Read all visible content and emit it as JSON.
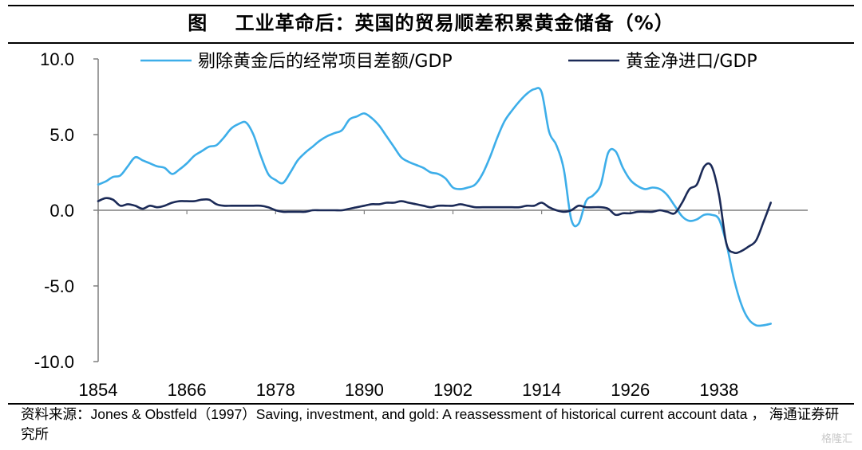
{
  "title": "图　 工业革命后：英国的贸易顺差积累黄金储备（%）",
  "source": "资料来源：Jones & Obstfeld（1997）Saving, investment, and gold: A reassessment of historical current account data ， 海通证券研究所",
  "watermark": "格隆汇",
  "colors": {
    "series1": "#3daee9",
    "series2": "#1b2a57",
    "axis": "#7f7f7f"
  },
  "chart_data": {
    "type": "line",
    "title": "工业革命后：英国的贸易顺差积累黄金储备（%）",
    "xlabel": "",
    "ylabel": "",
    "xlim": [
      1854,
      1950
    ],
    "ylim": [
      -10,
      10
    ],
    "y_ticks": [
      "10.0",
      "5.0",
      "0.0",
      "-5.0",
      "-10.0"
    ],
    "y_tick_values": [
      10,
      5,
      0,
      -5,
      -10
    ],
    "x_ticks": [
      "1854",
      "1866",
      "1878",
      "1890",
      "1902",
      "1914",
      "1926",
      "1938"
    ],
    "x_tick_values": [
      1854,
      1866,
      1878,
      1890,
      1902,
      1914,
      1926,
      1938
    ],
    "legend_position": "top",
    "series": [
      {
        "name": "剔除黄金后的经常项目差额/GDP",
        "color": "#3daee9",
        "x": [
          1854,
          1855,
          1856,
          1857,
          1858,
          1859,
          1860,
          1861,
          1862,
          1863,
          1864,
          1865,
          1866,
          1867,
          1868,
          1869,
          1870,
          1871,
          1872,
          1873,
          1874,
          1875,
          1876,
          1877,
          1878,
          1879,
          1880,
          1881,
          1882,
          1883,
          1884,
          1885,
          1886,
          1887,
          1888,
          1889,
          1890,
          1891,
          1892,
          1893,
          1894,
          1895,
          1896,
          1897,
          1898,
          1899,
          1900,
          1901,
          1902,
          1903,
          1904,
          1905,
          1906,
          1907,
          1908,
          1909,
          1910,
          1911,
          1912,
          1913,
          1914,
          1915,
          1916,
          1917,
          1918,
          1919,
          1920,
          1921,
          1922,
          1923,
          1924,
          1925,
          1926,
          1927,
          1928,
          1929,
          1930,
          1931,
          1932,
          1933,
          1934,
          1935,
          1936,
          1937,
          1938,
          1939,
          1940,
          1941,
          1942,
          1943,
          1944,
          1945
        ],
        "values": [
          1.7,
          1.9,
          2.2,
          2.3,
          2.9,
          3.5,
          3.3,
          3.1,
          2.9,
          2.8,
          2.4,
          2.7,
          3.1,
          3.6,
          3.9,
          4.2,
          4.3,
          4.8,
          5.4,
          5.7,
          5.8,
          5.0,
          3.6,
          2.4,
          2.0,
          1.8,
          2.5,
          3.3,
          3.8,
          4.2,
          4.6,
          4.9,
          5.1,
          5.3,
          6.0,
          6.2,
          6.4,
          6.1,
          5.6,
          4.9,
          4.2,
          3.5,
          3.2,
          3.0,
          2.8,
          2.5,
          2.4,
          2.1,
          1.5,
          1.4,
          1.5,
          1.7,
          2.4,
          3.5,
          4.8,
          5.9,
          6.6,
          7.2,
          7.7,
          8.0,
          7.8,
          5.2,
          4.3,
          2.7,
          -0.6,
          -0.9,
          0.6,
          1.0,
          1.7,
          3.8,
          3.9,
          2.8,
          2.0,
          1.6,
          1.4,
          1.5,
          1.4,
          1.0,
          0.3,
          -0.4,
          -0.7,
          -0.6,
          -0.3,
          -0.3,
          -0.6,
          -2.2,
          -4.5,
          -6.2,
          -7.2,
          -7.6,
          -7.6,
          -7.5
        ]
      },
      {
        "name": "黄金净进口/GDP",
        "color": "#1b2a57",
        "x": [
          1854,
          1855,
          1856,
          1857,
          1858,
          1859,
          1860,
          1861,
          1862,
          1863,
          1864,
          1865,
          1866,
          1867,
          1868,
          1869,
          1870,
          1871,
          1872,
          1873,
          1874,
          1875,
          1876,
          1877,
          1878,
          1879,
          1880,
          1881,
          1882,
          1883,
          1884,
          1885,
          1886,
          1887,
          1888,
          1889,
          1890,
          1891,
          1892,
          1893,
          1894,
          1895,
          1896,
          1897,
          1898,
          1899,
          1900,
          1901,
          1902,
          1903,
          1904,
          1905,
          1906,
          1907,
          1908,
          1909,
          1910,
          1911,
          1912,
          1913,
          1914,
          1915,
          1916,
          1917,
          1918,
          1919,
          1920,
          1921,
          1922,
          1923,
          1924,
          1925,
          1926,
          1927,
          1928,
          1929,
          1930,
          1931,
          1932,
          1933,
          1934,
          1935,
          1936,
          1937,
          1938,
          1939,
          1940,
          1941,
          1942,
          1943,
          1944,
          1945
        ],
        "values": [
          0.6,
          0.8,
          0.7,
          0.3,
          0.4,
          0.3,
          0.1,
          0.3,
          0.2,
          0.3,
          0.5,
          0.6,
          0.6,
          0.6,
          0.7,
          0.7,
          0.4,
          0.3,
          0.3,
          0.3,
          0.3,
          0.3,
          0.3,
          0.2,
          0.0,
          -0.1,
          -0.1,
          -0.1,
          -0.1,
          0.0,
          0.0,
          0.0,
          0.0,
          0.0,
          0.1,
          0.2,
          0.3,
          0.4,
          0.4,
          0.5,
          0.5,
          0.6,
          0.5,
          0.4,
          0.3,
          0.2,
          0.3,
          0.3,
          0.3,
          0.4,
          0.3,
          0.2,
          0.2,
          0.2,
          0.2,
          0.2,
          0.2,
          0.2,
          0.3,
          0.3,
          0.5,
          0.2,
          0.0,
          -0.1,
          0.0,
          0.3,
          0.2,
          0.2,
          0.2,
          0.1,
          -0.3,
          -0.2,
          -0.2,
          -0.1,
          -0.1,
          -0.1,
          0.0,
          -0.1,
          -0.2,
          0.5,
          1.4,
          1.7,
          2.9,
          2.9,
          1.0,
          -2.2,
          -2.8,
          -2.7,
          -2.4,
          -2.0,
          -0.8,
          0.5
        ]
      }
    ]
  }
}
